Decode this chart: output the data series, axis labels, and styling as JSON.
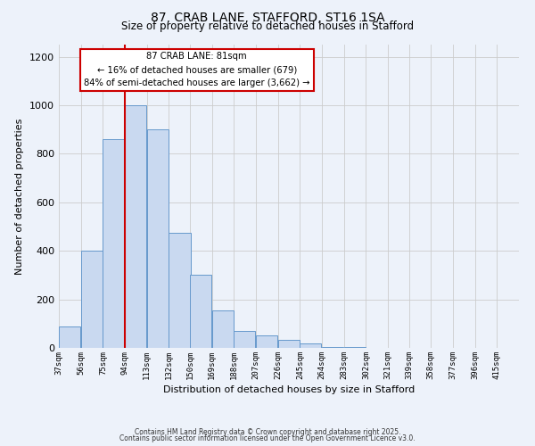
{
  "title_line1": "87, CRAB LANE, STAFFORD, ST16 1SA",
  "title_line2": "Size of property relative to detached houses in Stafford",
  "xlabel": "Distribution of detached houses by size in Stafford",
  "ylabel": "Number of detached properties",
  "bar_labels": [
    "37sqm",
    "56sqm",
    "75sqm",
    "94sqm",
    "113sqm",
    "132sqm",
    "150sqm",
    "169sqm",
    "188sqm",
    "207sqm",
    "226sqm",
    "245sqm",
    "264sqm",
    "283sqm",
    "302sqm",
    "321sqm",
    "339sqm",
    "358sqm",
    "377sqm",
    "396sqm",
    "415sqm"
  ],
  "bar_values": [
    90,
    400,
    860,
    1000,
    900,
    475,
    300,
    155,
    70,
    50,
    32,
    18,
    5,
    2,
    1,
    0,
    0,
    0,
    0,
    0,
    1
  ],
  "bar_color": "#c9d9f0",
  "bar_edge_color": "#6699cc",
  "vline_color": "#cc0000",
  "annotation_title": "87 CRAB LANE: 81sqm",
  "annotation_line1": "← 16% of detached houses are smaller (679)",
  "annotation_line2": "84% of semi-detached houses are larger (3,662) →",
  "annotation_box_color": "#ffffff",
  "annotation_box_edge": "#cc0000",
  "ylim": [
    0,
    1250
  ],
  "yticks": [
    0,
    200,
    400,
    600,
    800,
    1000,
    1200
  ],
  "grid_color": "#cccccc",
  "bg_color": "#edf2fa",
  "footnote1": "Contains HM Land Registry data © Crown copyright and database right 2025.",
  "footnote2": "Contains public sector information licensed under the Open Government Licence v3.0."
}
